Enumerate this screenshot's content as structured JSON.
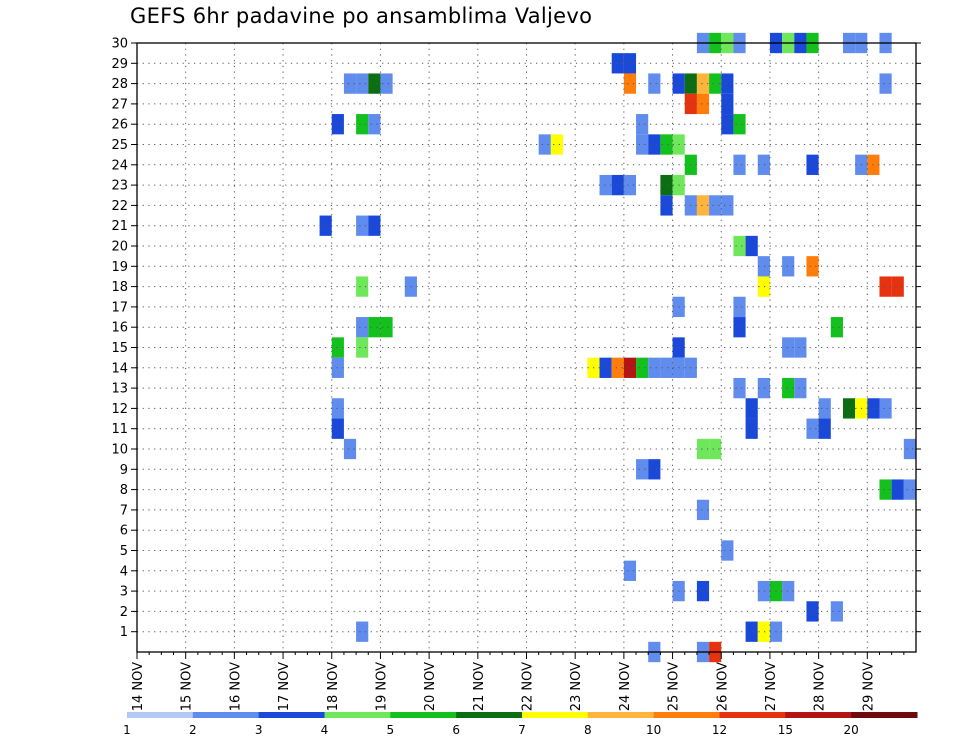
{
  "chart_data": {
    "type": "heatmap",
    "title": "GEFS 6hr padavine po ansamblima Valjevo",
    "xlabel": "",
    "ylabel": "",
    "x_start_day": 14,
    "x_end_day": 29,
    "x_tick_labels": [
      "14 NOV",
      "15 NOV",
      "16 NOV",
      "17 NOV",
      "18 NOV",
      "19 NOV",
      "20 NOV",
      "21 NOV",
      "22 NOV",
      "23 NOV",
      "24 NOV",
      "25 NOV",
      "26 NOV",
      "27 NOV",
      "28 NOV",
      "29 NOV"
    ],
    "steps_per_day": 4,
    "y_members": [
      0,
      30
    ],
    "y_tick_labels": [
      "1",
      "2",
      "3",
      "4",
      "5",
      "6",
      "7",
      "8",
      "9",
      "10",
      "11",
      "12",
      "13",
      "14",
      "15",
      "16",
      "17",
      "18",
      "19",
      "20",
      "21",
      "22",
      "23",
      "24",
      "25",
      "26",
      "27",
      "28",
      "29",
      "30"
    ],
    "grid": true,
    "colorbar": {
      "position": "bottom",
      "labels": [
        "1",
        "2",
        "3",
        "4",
        "5",
        "6",
        "7",
        "8",
        "10",
        "12",
        "15",
        "20"
      ],
      "colors": [
        "#b4c8f5",
        "#5f8ced",
        "#1a48d8",
        "#6ee85a",
        "#14c01e",
        "#0b6e12",
        "#ffff00",
        "#ffb43c",
        "#ff7d0a",
        "#e6320f",
        "#b41414",
        "#6e0a0a"
      ]
    },
    "cells": [
      [
        30,
        25.5,
        1
      ],
      [
        30,
        25.75,
        4
      ],
      [
        30,
        26,
        3
      ],
      [
        30,
        26.25,
        1
      ],
      [
        30,
        27,
        2
      ],
      [
        30,
        27.25,
        3
      ],
      [
        30,
        27.5,
        2
      ],
      [
        30,
        27.75,
        4
      ],
      [
        30,
        28.5,
        1
      ],
      [
        30,
        28.75,
        1
      ],
      [
        30,
        29.25,
        1
      ],
      [
        29,
        23.75,
        2
      ],
      [
        29,
        24,
        2
      ],
      [
        28,
        18.25,
        1
      ],
      [
        28,
        18.5,
        1
      ],
      [
        28,
        18.75,
        5
      ],
      [
        28,
        19,
        1
      ],
      [
        28,
        24,
        8
      ],
      [
        28,
        24.5,
        1
      ],
      [
        28,
        25,
        2
      ],
      [
        28,
        25.25,
        5
      ],
      [
        28,
        25.5,
        7
      ],
      [
        28,
        25.75,
        4
      ],
      [
        28,
        26,
        2
      ],
      [
        28,
        29.25,
        1
      ],
      [
        27,
        25.25,
        9
      ],
      [
        27,
        25.5,
        8
      ],
      [
        27,
        26,
        2
      ],
      [
        26,
        18,
        2
      ],
      [
        26,
        18.5,
        4
      ],
      [
        26,
        18.75,
        1
      ],
      [
        26,
        24.25,
        1
      ],
      [
        26,
        26,
        2
      ],
      [
        26,
        26.25,
        4
      ],
      [
        25,
        22.25,
        1
      ],
      [
        25,
        22.5,
        6
      ],
      [
        25,
        24.25,
        1
      ],
      [
        25,
        24.5,
        2
      ],
      [
        25,
        24.75,
        4
      ],
      [
        25,
        25,
        3
      ],
      [
        24,
        25.25,
        4
      ],
      [
        24,
        26.25,
        1
      ],
      [
        24,
        26.75,
        1
      ],
      [
        24,
        27.75,
        2
      ],
      [
        24,
        28.75,
        1
      ],
      [
        24,
        29,
        8
      ],
      [
        23,
        23.5,
        1
      ],
      [
        23,
        23.75,
        2
      ],
      [
        23,
        24,
        1
      ],
      [
        23,
        24.75,
        5
      ],
      [
        23,
        25,
        3
      ],
      [
        22,
        24.75,
        2
      ],
      [
        22,
        25.25,
        1
      ],
      [
        22,
        25.5,
        7
      ],
      [
        22,
        25.75,
        1
      ],
      [
        22,
        26,
        1
      ],
      [
        21,
        17.75,
        2
      ],
      [
        21,
        18.5,
        1
      ],
      [
        21,
        18.75,
        2
      ],
      [
        20,
        26.25,
        3
      ],
      [
        20,
        26.5,
        2
      ],
      [
        19,
        26.75,
        1
      ],
      [
        19,
        27.25,
        1
      ],
      [
        19,
        27.75,
        8
      ],
      [
        18,
        18.5,
        3
      ],
      [
        18,
        19.5,
        1
      ],
      [
        18,
        26.75,
        6
      ],
      [
        18,
        29.25,
        9
      ],
      [
        18,
        29.5,
        9
      ],
      [
        17,
        25,
        1
      ],
      [
        17,
        26.25,
        1
      ],
      [
        16,
        18.5,
        1
      ],
      [
        16,
        18.75,
        4
      ],
      [
        16,
        19,
        4
      ],
      [
        16,
        26.25,
        2
      ],
      [
        16,
        28.25,
        4
      ],
      [
        15,
        18,
        4
      ],
      [
        15,
        18.5,
        3
      ],
      [
        15,
        25,
        2
      ],
      [
        15,
        27.25,
        1
      ],
      [
        15,
        27.5,
        1
      ],
      [
        14,
        18,
        1
      ],
      [
        14,
        23.25,
        6
      ],
      [
        14,
        23.5,
        2
      ],
      [
        14,
        23.75,
        8
      ],
      [
        14,
        24,
        10
      ],
      [
        14,
        24.25,
        4
      ],
      [
        14,
        24.5,
        1
      ],
      [
        14,
        24.75,
        1
      ],
      [
        14,
        25,
        1
      ],
      [
        14,
        25.25,
        1
      ],
      [
        13,
        26.25,
        1
      ],
      [
        13,
        26.75,
        1
      ],
      [
        13,
        27.25,
        4
      ],
      [
        13,
        27.5,
        1
      ],
      [
        12,
        18,
        1
      ],
      [
        12,
        26.5,
        2
      ],
      [
        12,
        28,
        1
      ],
      [
        12,
        28.5,
        5
      ],
      [
        12,
        28.75,
        6
      ],
      [
        12,
        29,
        2
      ],
      [
        12,
        29.25,
        1
      ],
      [
        11,
        18,
        2
      ],
      [
        11,
        26.5,
        2
      ],
      [
        11,
        27.75,
        1
      ],
      [
        11,
        28,
        2
      ],
      [
        10,
        18.25,
        1
      ],
      [
        10,
        25.5,
        3
      ],
      [
        10,
        25.75,
        3
      ],
      [
        10,
        29.75,
        1
      ],
      [
        9,
        24.25,
        1
      ],
      [
        9,
        24.5,
        2
      ],
      [
        8,
        29.25,
        4
      ],
      [
        8,
        29.5,
        2
      ],
      [
        8,
        29.75,
        1
      ],
      [
        7,
        25.5,
        1
      ],
      [
        5,
        26,
        1
      ],
      [
        4,
        24,
        1
      ],
      [
        3,
        25,
        1
      ],
      [
        3,
        25.5,
        2
      ],
      [
        3,
        26.75,
        1
      ],
      [
        3,
        27,
        4
      ],
      [
        3,
        27.25,
        1
      ],
      [
        2,
        27.75,
        2
      ],
      [
        2,
        28.25,
        1
      ],
      [
        1,
        18.5,
        1
      ],
      [
        1,
        26.5,
        2
      ],
      [
        1,
        26.75,
        6
      ],
      [
        1,
        27,
        1
      ],
      [
        0,
        24.5,
        1
      ],
      [
        0,
        25.5,
        1
      ],
      [
        0,
        25.75,
        9
      ]
    ]
  }
}
